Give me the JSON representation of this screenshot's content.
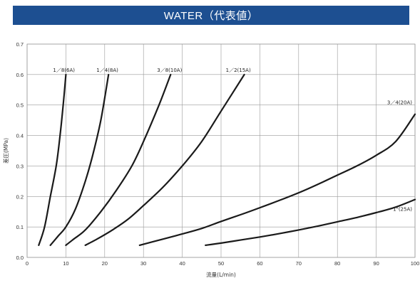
{
  "chart_data": {
    "type": "line",
    "title": "WATER（代表値）",
    "xlabel": "流量(L/min)",
    "ylabel": "差圧(MPa)",
    "xlim": [
      0,
      100
    ],
    "ylim": [
      0,
      0.7
    ],
    "xticks": [
      0,
      10,
      20,
      30,
      40,
      50,
      60,
      70,
      80,
      90,
      100
    ],
    "yticks": [
      0.0,
      0.1,
      0.2,
      0.3,
      0.4,
      0.5,
      0.6,
      0.7
    ],
    "grid": true,
    "accent_color": "#1d4f91",
    "line_color": "#1a1a1a",
    "series": [
      {
        "name": "1／8(6A)",
        "x": [
          3,
          4.5,
          6,
          7.5,
          8.5,
          9.3,
          10
        ],
        "y": [
          0.04,
          0.1,
          0.2,
          0.3,
          0.4,
          0.5,
          0.6
        ]
      },
      {
        "name": "1／4(8A)",
        "x": [
          6,
          8,
          10,
          12.5,
          15,
          17,
          19,
          21
        ],
        "y": [
          0.04,
          0.07,
          0.1,
          0.16,
          0.25,
          0.34,
          0.45,
          0.6
        ]
      },
      {
        "name": "3／8(10A)",
        "x": [
          10,
          12,
          15,
          19,
          23,
          27,
          30,
          34,
          37
        ],
        "y": [
          0.04,
          0.06,
          0.09,
          0.15,
          0.22,
          0.3,
          0.38,
          0.5,
          0.6
        ]
      },
      {
        "name": "1／2(15A)",
        "x": [
          15,
          18,
          22,
          26,
          30,
          35,
          40,
          45,
          50,
          56
        ],
        "y": [
          0.04,
          0.06,
          0.09,
          0.125,
          0.17,
          0.23,
          0.3,
          0.38,
          0.48,
          0.6
        ]
      },
      {
        "name": "3／4(20A)",
        "x": [
          29,
          35,
          40,
          45,
          50,
          55,
          60,
          65,
          70,
          75,
          80,
          85,
          90,
          95,
          100
        ],
        "y": [
          0.04,
          0.06,
          0.077,
          0.095,
          0.118,
          0.14,
          0.163,
          0.187,
          0.212,
          0.24,
          0.27,
          0.3,
          0.335,
          0.38,
          0.47
        ]
      },
      {
        "name": "1\"(25A)",
        "x": [
          46,
          50,
          55,
          60,
          65,
          70,
          75,
          80,
          85,
          90,
          95,
          100
        ],
        "y": [
          0.04,
          0.047,
          0.057,
          0.067,
          0.078,
          0.09,
          0.103,
          0.117,
          0.131,
          0.147,
          0.165,
          0.19
        ]
      }
    ]
  }
}
